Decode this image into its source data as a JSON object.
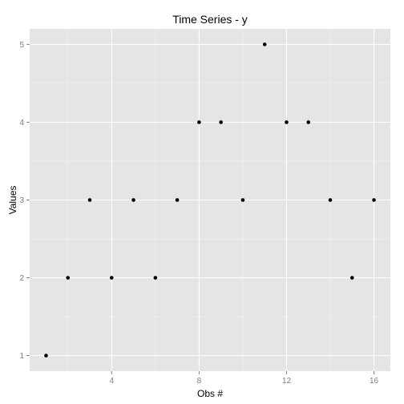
{
  "chart_data": {
    "type": "scatter",
    "title": "Time Series - y",
    "xlabel": "Obs #",
    "ylabel": "Values",
    "x": [
      1,
      2,
      3,
      4,
      5,
      6,
      7,
      8,
      9,
      10,
      11,
      12,
      13,
      14,
      15,
      16
    ],
    "y": [
      1,
      2,
      3,
      2,
      3,
      2,
      3,
      4,
      4,
      3,
      5,
      4,
      4,
      3,
      2,
      3
    ],
    "xlim": [
      0.25,
      16.75
    ],
    "ylim": [
      0.8,
      5.2
    ],
    "x_ticks": [
      4,
      8,
      12,
      16
    ],
    "x_minor_ticks": [
      2,
      6,
      10,
      14
    ],
    "y_ticks": [
      1,
      2,
      3,
      4,
      5
    ],
    "y_minor_ticks": [
      1.5,
      2.5,
      3.5,
      4.5
    ],
    "grid": true,
    "colors": {
      "panel": "#E5E5E5",
      "grid_major": "#FFFFFF",
      "grid_minor": "#F2F2F2",
      "point": "#000000",
      "tick_label": "#7F7F7F"
    }
  }
}
